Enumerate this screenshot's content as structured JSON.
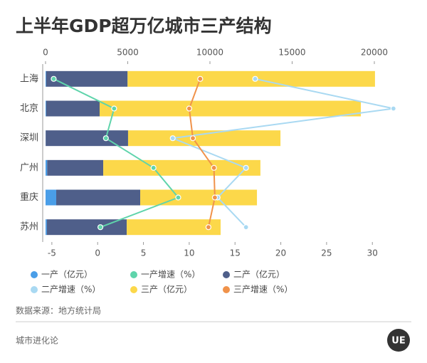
{
  "chart_data": {
    "type": "bar",
    "orientation": "horizontal",
    "stacked": true,
    "title": "上半年GDP超万亿城市三产结构",
    "categories": [
      "上海",
      "北京",
      "深圳",
      "广州",
      "重庆",
      "苏州"
    ],
    "series": [
      {
        "name": "一产（亿元）",
        "color": "#4a9ee8",
        "type": "bar",
        "values": [
          40,
          40,
          10,
          100,
          650,
          80
        ]
      },
      {
        "name": "一产增速（%）",
        "color": "#5fd4ab",
        "type": "line",
        "axis": "x2",
        "values": [
          -4.8,
          1.8,
          0.9,
          6.1,
          8.8,
          0.3
        ]
      },
      {
        "name": "二产（亿元）",
        "color": "#4f5f8a",
        "type": "bar",
        "values": [
          4950,
          3250,
          5010,
          3410,
          5110,
          4860
        ]
      },
      {
        "name": "二产增速（%）",
        "color": "#a9d9f2",
        "type": "line",
        "axis": "x2",
        "values": [
          17.2,
          32.3,
          8.2,
          16.2,
          13.1,
          16.2
        ]
      },
      {
        "name": "三产（亿元）",
        "color": "#fcd84a",
        "type": "bar",
        "values": [
          15050,
          15890,
          9270,
          9560,
          7100,
          5710
        ]
      },
      {
        "name": "三产增速（%）",
        "color": "#f0924a",
        "type": "line",
        "axis": "x2",
        "values": [
          11.2,
          10.0,
          10.4,
          12.7,
          12.8,
          12.1
        ]
      }
    ],
    "xlim": [
      -173,
      22165
    ],
    "xticks": [
      0,
      5000,
      10000,
      15000,
      20000
    ],
    "x2lim": [
      -6,
      34.1
    ],
    "x2ticks": [
      -5,
      0,
      5,
      10,
      15,
      20,
      25,
      30
    ],
    "grid": false
  },
  "source": "数据来源：地方统计局",
  "footer": "城市进化论",
  "logo": "UE"
}
